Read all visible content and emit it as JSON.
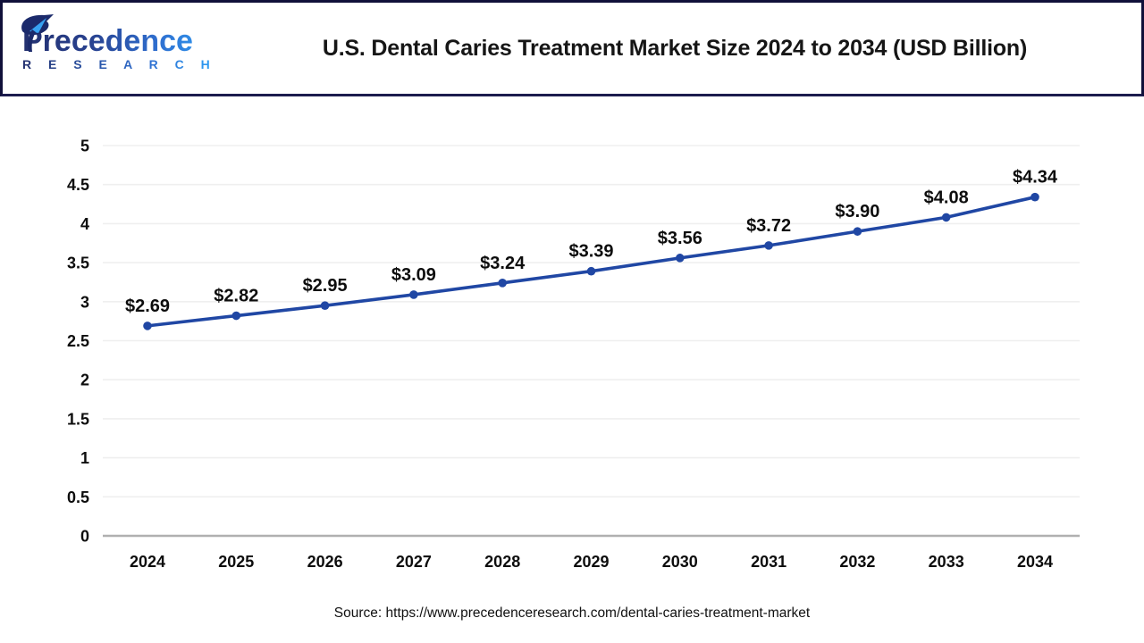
{
  "header": {
    "logo": {
      "name": "Precedence",
      "sub": "R E S E A R C H"
    },
    "title": "U.S. Dental Caries Treatment Market Size 2024 to 2034 (USD Billion)"
  },
  "source": "Source: https://www.precedenceresearch.com/dental-caries-treatment-market",
  "colors": {
    "line": "#2047a4",
    "marker": "#2047a4",
    "grid": "#efefef",
    "zero_axis": "#b0b0b0",
    "divider": "#1c1c4e",
    "logo_dark": "#23306f",
    "logo_light": "#2f9ff5",
    "label_text": "#0d0d0d"
  },
  "chart_data": {
    "type": "line",
    "title": "U.S. Dental Caries Treatment Market Size 2024 to 2034 (USD Billion)",
    "categories": [
      "2024",
      "2025",
      "2026",
      "2027",
      "2028",
      "2029",
      "2030",
      "2031",
      "2032",
      "2033",
      "2034"
    ],
    "values": [
      2.69,
      2.82,
      2.95,
      3.09,
      3.24,
      3.39,
      3.56,
      3.72,
      3.9,
      4.08,
      4.34
    ],
    "labels": [
      "$2.69",
      "$2.82",
      "$2.95",
      "$3.09",
      "$3.24",
      "$3.39",
      "$3.56",
      "$3.72",
      "$3.90",
      "$4.08",
      "$4.34"
    ],
    "xlabel": "",
    "ylabel": "",
    "ylim": [
      0,
      5
    ],
    "yticks": [
      0,
      0.5,
      1,
      1.5,
      2,
      2.5,
      3,
      3.5,
      4,
      4.5,
      5
    ],
    "grid": "horizontal",
    "legend": "none",
    "marker": "circle"
  }
}
